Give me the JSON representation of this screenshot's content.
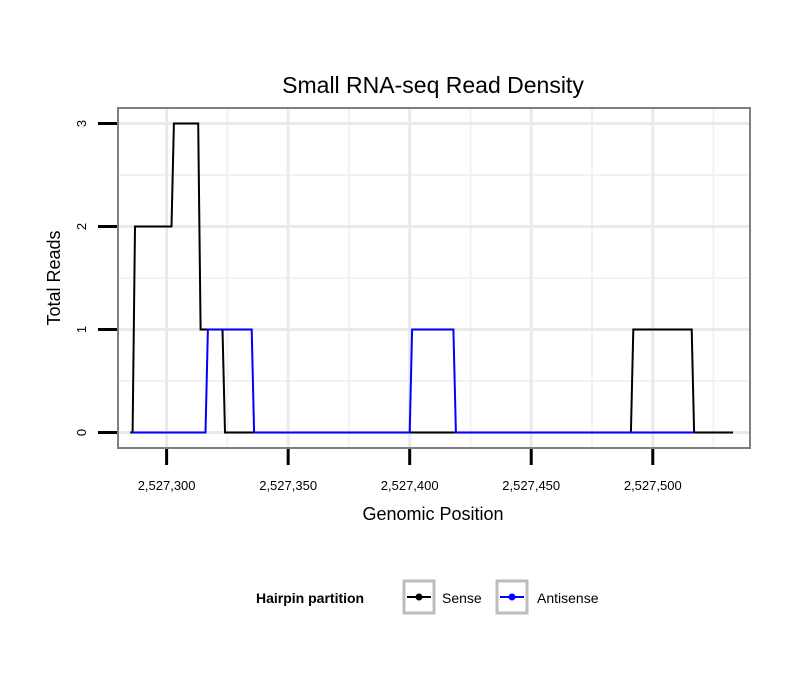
{
  "chart_data": {
    "type": "line",
    "title": "Small RNA-seq Read Density",
    "xlabel": "Genomic Position",
    "ylabel": "Total Reads",
    "xlim": [
      2527280,
      2527540
    ],
    "ylim": [
      -0.15,
      3.15
    ],
    "x_ticks": [
      2527300,
      2527350,
      2527400,
      2527450,
      2527500
    ],
    "x_tick_labels": [
      "2,527,300",
      "2,527,350",
      "2,527,400",
      "2,527,450",
      "2,527,500"
    ],
    "y_ticks": [
      0,
      1,
      2,
      3
    ],
    "y_tick_labels": [
      "0",
      "1",
      "2",
      "3"
    ],
    "grid": true,
    "legend": {
      "title": "Hairpin partition",
      "position": "bottom"
    },
    "series": [
      {
        "name": "Sense",
        "color": "#000000",
        "points": [
          [
            2527285,
            0
          ],
          [
            2527286,
            0
          ],
          [
            2527287,
            2
          ],
          [
            2527302,
            2
          ],
          [
            2527303,
            3
          ],
          [
            2527313,
            3
          ],
          [
            2527314,
            1
          ],
          [
            2527323,
            1
          ],
          [
            2527324,
            0
          ],
          [
            2527491,
            0
          ],
          [
            2527492,
            1
          ],
          [
            2527516,
            1
          ],
          [
            2527517,
            0
          ],
          [
            2527533,
            0
          ]
        ]
      },
      {
        "name": "Antisense",
        "color": "#0000ff",
        "points": [
          [
            2527286,
            0
          ],
          [
            2527316,
            0
          ],
          [
            2527317,
            1
          ],
          [
            2527335,
            1
          ],
          [
            2527336,
            0
          ],
          [
            2527400,
            0
          ],
          [
            2527401,
            1
          ],
          [
            2527418,
            1
          ],
          [
            2527419,
            0
          ],
          [
            2527517,
            0
          ]
        ]
      }
    ]
  }
}
